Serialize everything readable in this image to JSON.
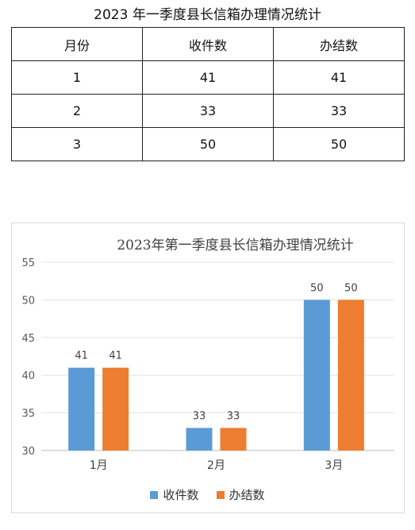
{
  "table": {
    "title": "2023 年一季度县长信箱办理情况统计",
    "headers": [
      "月份",
      "收件数",
      "办结数"
    ],
    "rows": [
      [
        "1",
        "41",
        "41"
      ],
      [
        "2",
        "33",
        "33"
      ],
      [
        "3",
        "50",
        "50"
      ]
    ]
  },
  "chart_data": {
    "type": "bar",
    "title": "2023年第一季度县长信箱办理情况统计",
    "categories": [
      "1月",
      "2月",
      "3月"
    ],
    "series": [
      {
        "name": "收件数",
        "values": [
          41,
          33,
          50
        ],
        "color": "#5b9bd5"
      },
      {
        "name": "办结数",
        "values": [
          41,
          33,
          50
        ],
        "color": "#ed7d31"
      }
    ],
    "ylim": [
      30,
      55
    ],
    "yticks": [
      30,
      35,
      40,
      45,
      50,
      55
    ],
    "grid": true,
    "legend": "bottom",
    "data_labels": true
  }
}
